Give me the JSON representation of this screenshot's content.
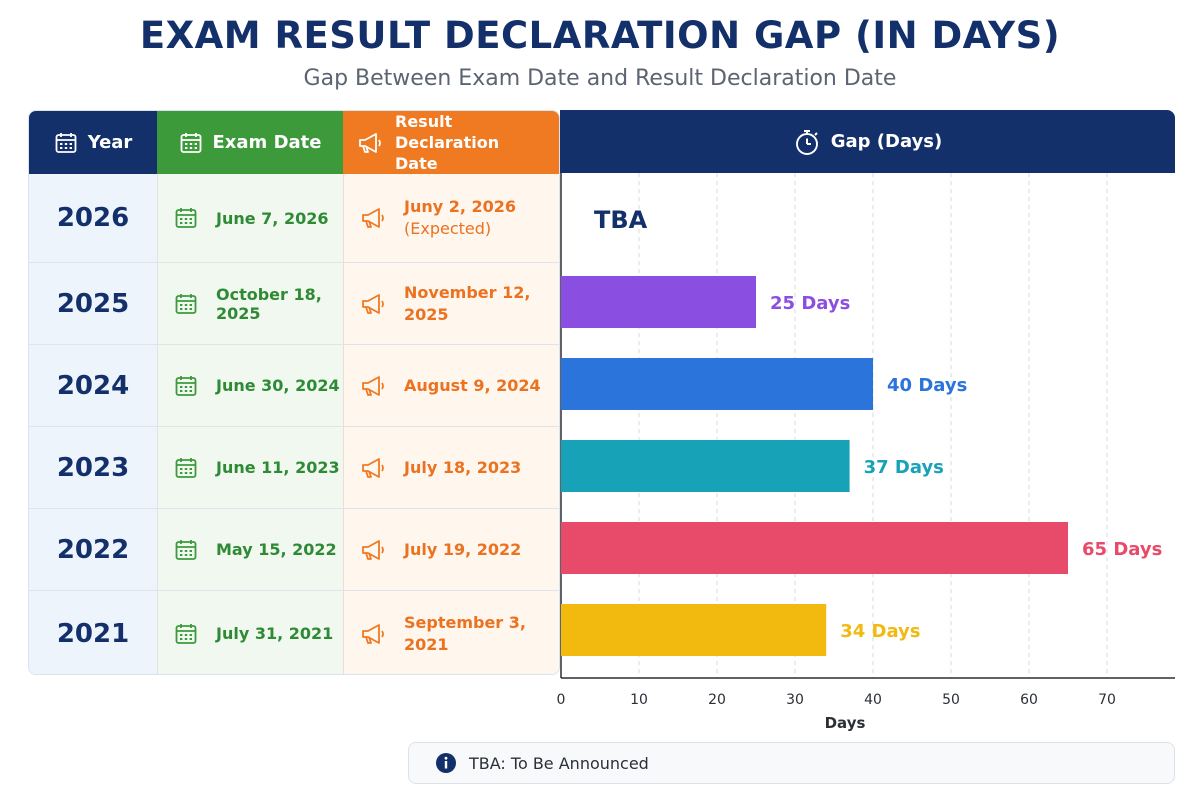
{
  "title": "EXAM RESULT DECLARATION GAP (IN DAYS)",
  "subtitle": "Gap Between Exam Date and Result Declaration Date",
  "headers": {
    "year": "Year",
    "exam_date": "Exam Date",
    "result_date": "Result Declaration Date",
    "gap": "Gap (Days)"
  },
  "rows": [
    {
      "year": "2026",
      "exam_date": "June 7, 2026",
      "result_date": "Juny 2, 2026",
      "result_note": "(Expected)",
      "gap_label": "TBA"
    },
    {
      "year": "2025",
      "exam_date": "October 18, 2025",
      "result_date": "November 12, 2025",
      "result_note": "",
      "gap_label": "25 Days"
    },
    {
      "year": "2024",
      "exam_date": "June 30, 2024",
      "result_date": "August 9, 2024",
      "result_note": "",
      "gap_label": "40 Days"
    },
    {
      "year": "2023",
      "exam_date": "June 11, 2023",
      "result_date": "July 18, 2023",
      "result_note": "",
      "gap_label": "37 Days"
    },
    {
      "year": "2022",
      "exam_date": "May 15, 2022",
      "result_date": "July 19, 2022",
      "result_note": "",
      "gap_label": "65 Days"
    },
    {
      "year": "2021",
      "exam_date": "July 31, 2021",
      "result_date": "September 3, 2021",
      "result_note": "",
      "gap_label": "34 Days"
    }
  ],
  "chart_data": {
    "type": "bar",
    "orientation": "horizontal",
    "categories": [
      "2026",
      "2025",
      "2024",
      "2023",
      "2022",
      "2021"
    ],
    "values": [
      null,
      25,
      40,
      37,
      65,
      34
    ],
    "value_labels": [
      "TBA",
      "25 Days",
      "40 Days",
      "37 Days",
      "65 Days",
      "34 Days"
    ],
    "colors": [
      null,
      "#8a4fe0",
      "#2a74dc",
      "#17a2b8",
      "#e84a6a",
      "#f2b90f"
    ],
    "xlabel": "Days",
    "xlim": [
      0,
      72
    ],
    "xticks": [
      0,
      10,
      20,
      30,
      40,
      50,
      60,
      70
    ],
    "grid": true
  },
  "note": "TBA: To Be Announced",
  "colors": {
    "navy": "#13306b",
    "green": "#3d9a3b",
    "orange": "#ef7a22"
  }
}
